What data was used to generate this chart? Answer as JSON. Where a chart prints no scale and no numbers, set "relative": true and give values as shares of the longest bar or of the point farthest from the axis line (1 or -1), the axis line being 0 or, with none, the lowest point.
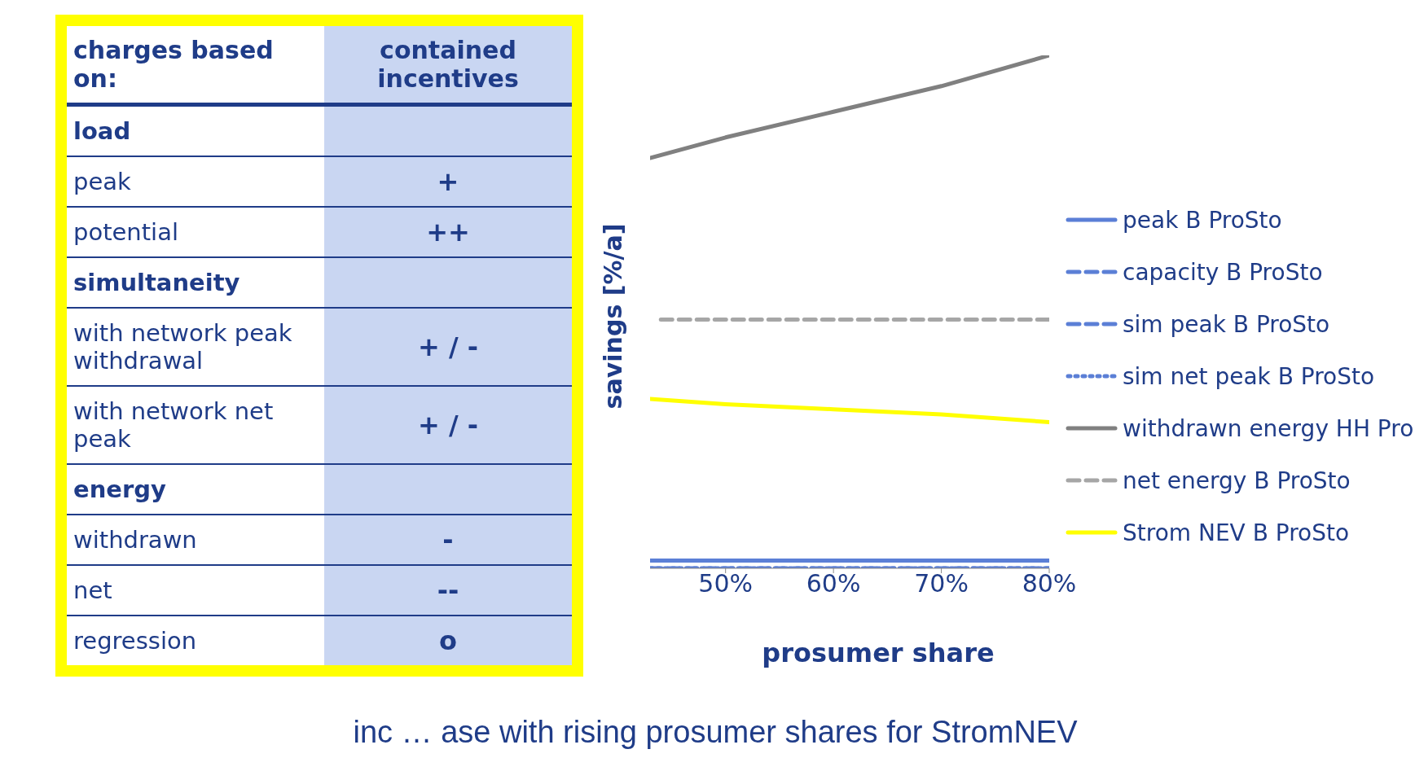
{
  "chart_data": [
    {
      "type": "other",
      "title": "charges based on:",
      "subtitle": "contained incentives",
      "categories": [
        "load",
        "peak",
        "potential",
        "simultaneity",
        "with network peak withdrawal",
        "with network net peak",
        "energy",
        "withdrawn",
        "net",
        "regression"
      ],
      "value_labels": [
        null,
        "+",
        "++",
        null,
        "+ / -",
        "+ / -",
        null,
        "-",
        "--",
        "o"
      ]
    },
    {
      "type": "line",
      "relative": true,
      "ylabel": "savings [%/a]",
      "xlabel": "prosumer share",
      "xlim": [
        43,
        80
      ],
      "xticks": [
        {
          "value": 50,
          "label": "50%"
        },
        {
          "value": 60,
          "label": "60%"
        },
        {
          "value": 70,
          "label": "70%"
        },
        {
          "value": 80,
          "label": "80%"
        }
      ],
      "legend": "right",
      "marker": "none",
      "annotations": [
        "inc … ase with rising prosumer shares for StromNEV"
      ],
      "series": [
        {
          "name": "peak B ProSto",
          "color": "#5b7fd6",
          "line_style": "solid",
          "x": [
            43,
            50,
            60,
            70,
            80
          ],
          "values": [
            0.015,
            0.015,
            0.015,
            0.015,
            0.015
          ]
        },
        {
          "name": "capacity B ProSto",
          "color": "#5b7fd6",
          "line_style": "dashed",
          "values": [
            null,
            null,
            null,
            null,
            null
          ]
        },
        {
          "name": "sim peak B ProSto",
          "color": "#5b7fd6",
          "line_style": "dashed",
          "x": [
            43,
            50,
            60,
            70,
            80
          ],
          "values": [
            0,
            0,
            0,
            0,
            0
          ]
        },
        {
          "name": "sim net peak B ProSto",
          "color": "#5b7fd6",
          "line_style": "dotted",
          "x": [
            43,
            50,
            60,
            70,
            80
          ],
          "values": [
            0,
            0,
            0,
            0,
            0
          ]
        },
        {
          "name": "withdrawn energy HH Pro",
          "color": "#808080",
          "line_style": "solid",
          "x": [
            43,
            50,
            60,
            70,
            80
          ],
          "values": [
            0.8,
            0.84,
            0.89,
            0.94,
            1
          ]
        },
        {
          "name": "net energy B ProSto",
          "color": "#a6a6a6",
          "line_style": "dashed",
          "x": [
            44,
            50,
            60,
            70,
            80
          ],
          "values": [
            0.485,
            0.485,
            0.485,
            0.485,
            0.485
          ]
        },
        {
          "name": "Strom NEV B ProSto",
          "color": "#ffff00",
          "line_style": "solid",
          "x": [
            43,
            50,
            60,
            70,
            80
          ],
          "values": [
            0.33,
            0.32,
            0.31,
            0.3,
            0.285
          ]
        }
      ]
    }
  ]
}
